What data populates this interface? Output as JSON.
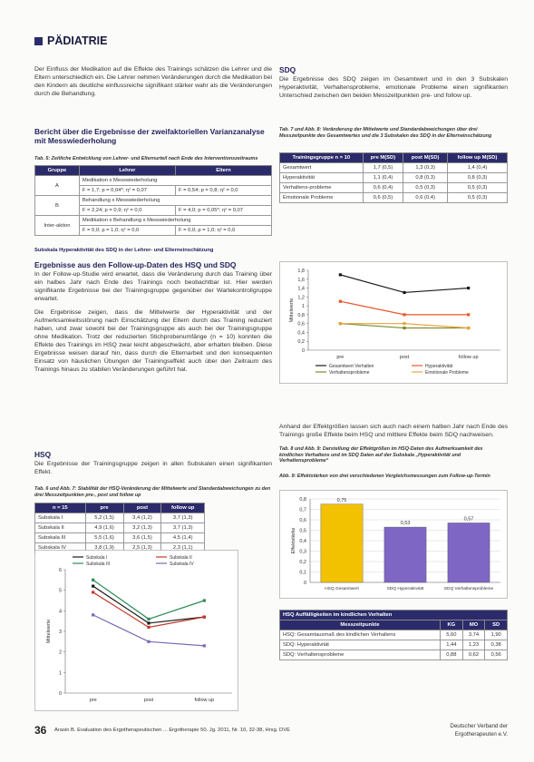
{
  "header": {
    "section": "PÄDIATRIE"
  },
  "left": {
    "intro": "Der Einfluss der Medikation auf die Effekte des Trainings schätzen die Lehrer und die Eltern unterschiedlich ein. Die Lehrer nehmen Veränderungen durch die Medikation bei den Kindern als deutliche einflussreiche signifikant stärker wahr als die Veränderungen durch die Behandlung.",
    "heading1": "Bericht über die Ergebnisse der zweifaktoriellen Varianzanalyse mit Messwiederholung",
    "tab5_caption": "Tab. 5: Zeitliche Entwicklung von Lehrer- und Elternurteil nach Ende des Interventionszeitraums",
    "tab5": {
      "header": [
        "Gruppe",
        "Lehrer",
        "Eltern"
      ],
      "rows": [
        {
          "group": "A",
          "effect": "Medikation x Messwiederholung",
          "teacher": "F = 1,7; p = 0,04*; η² = 0,07",
          "parent": "F = 0,54; p = 0,8; η² = 0,0"
        },
        {
          "group": "B",
          "effect": "Behandlung x Messwiederholung",
          "teacher": "F = 2,24; p = 0,9; η² = 0,0",
          "parent": "F = 4,0; p = 0,05*; η² = 0,07"
        },
        {
          "group": "Inter-aktion",
          "effect": "Medikation x Behandlung x Messwiederholung",
          "teacher": "F = 0,0; p = 1,0; η² = 0,0",
          "parent": "F = 0,0; p = 1,0; η² = 0,0"
        }
      ]
    },
    "tab5_note": "Subskala Hyperaktivität des SDQ in der Lehrer- und Elterneinschätzung",
    "heading2": "Ergebnisse aus den Follow-up-Daten des HSQ und SDQ",
    "p2": "In der Follow-up-Studie wird erwartet, dass die Veränderung durch das Training über ein halbes Jahr nach Ende des Trainings noch beobachtbar ist. Hier werden signifikante Ergebnisse bei der Trainingsgruppe gegenüber der Wartekontrollgruppe erwartet.",
    "p3": "Die Ergebnisse zeigen, dass die Mittelwerte der Hyperaktivität und der Aufmerksamkeitsstörung nach Einschätzung der Eltern durch das Training reduziert haben, und zwar sowohl bei der Trainingsgruppe als auch bei der Trainingsgruppe ohne Medikation. Trotz der reduzierten Stichprobenumfänge (n = 10) konnten die Effekte des Trainings im HSQ zwar leicht abgeschwächt, aber erhalten bleiben. Diese Ergebnisse weisen darauf hin, dass durch die Elternarbeit und den konsequenten Einsatz von häuslichen Übungen der Trainingseffekt auch über den Zeitraum des Trainings hinaus zu stabilen Veränderungen geführt hat.",
    "heading3": "HSQ",
    "p4": "Die Ergebnisse der Trainingsgruppe zeigen in allen Subskalen einen signifikanten Effekt.",
    "tab6_caption": "Tab. 6 und Abb. 7: Stabilität der HSQ-Veränderung der Mittelwerte und Standardabweichungen zu den drei Messzeitpunkten pre-, post und follow up",
    "tab6": {
      "header": [
        "n = 15",
        "pre",
        "post",
        "follow up"
      ],
      "rows": [
        [
          "Subskala I",
          "5,2 (1,5)",
          "3,4 (1,2)",
          "3,7 (1,3)"
        ],
        [
          "Subskala II",
          "4,9 (1,6)",
          "3,2 (1,3)",
          "3,7 (1,3)"
        ],
        [
          "Subskala III",
          "5,5 (1,6)",
          "3,6 (1,5)",
          "4,5 (1,4)"
        ],
        [
          "Subskala IV",
          "3,8 (1,9)",
          "2,5 (1,3)",
          "2,3 (1,1)"
        ]
      ]
    }
  },
  "right": {
    "heading1": "SDQ",
    "p1": "Die Ergebnisse des SDQ zeigen im Gesamtwert und in den 3 Subskalen Hyperaktivität, Verhaltensprobleme, emotionale Probleme einen signifikanten Unterschied zwischen den beiden Messzeitpunkten pre- und follow up.",
    "tab7_caption": "Tab. 7 und Abb. 8: Veränderung der Mittelwerte und Standardabweichungen über drei Messzeitpunkte des Gesamtwertes und die 3 Subskalen des SDQ in der Elterneinschätzung",
    "tab7": {
      "header": [
        "Trainingsgruppe n = 10",
        "pre M(SD)",
        "post M(SD)",
        "follow up M(SD)"
      ],
      "rows": [
        [
          "Gesamtwert",
          "1,7 (0,5)",
          "1,3 (0,3)",
          "1,4 (0,4)"
        ],
        [
          "Hyperaktivität",
          "1,1 (0,4)",
          "0,8 (0,3)",
          "0,8 (0,3)"
        ],
        [
          "Verhaltens-probleme",
          "0,6 (0,4)",
          "0,5 (0,3)",
          "0,5 (0,3)"
        ],
        [
          "Emotionale Probleme",
          "0,6 (0,5)",
          "0,6 (0,4)",
          "0,5 (0,3)"
        ]
      ]
    },
    "p2": "Anhand der Effektgrößen lassen sich auch nach einem halben Jahr nach Ende des Trainings große Effekte beim HSQ und mittlere Effekte beim SDQ nachweisen.",
    "tab8_caption": "Tab. 8 und Abb. 9: Darstellung der Effektgrößen im HSQ-Daten des Aufmerksamkeit des kindlichen Verhaltens und im SDQ Daten auf der Subskala „Hyperaktivität und Verhaltensprobleme“",
    "abb9_caption": "Abb. 9: Effektstärken von drei verschiedenen Vergleichsmessungen zum Follow-up-Termin",
    "tab8": {
      "title": "HSQ Auffälligkeiten im kindlichen Verhalten",
      "header": [
        "Messzeitpunkte",
        "KG",
        "MO",
        "SD"
      ],
      "rows": [
        [
          "HSQ: Gesamtausmaß des kindlichen Verhaltens",
          "5,60",
          "3,74",
          "1,90"
        ],
        [
          "SDQ: Hyperaktivität",
          "1,44",
          "1,23",
          "0,38"
        ],
        [
          "SDQ: Verhaltensprobleme",
          "0,88",
          "0,62",
          "0,56"
        ]
      ]
    }
  },
  "chart_data": [
    {
      "type": "line",
      "ylabel": "Mittelwerte",
      "categories": [
        "pre",
        "post",
        "follow up"
      ],
      "ylim": [
        0,
        6
      ],
      "yticks": [
        0,
        1,
        2,
        3,
        4,
        5,
        6
      ],
      "legend": "top",
      "series": [
        {
          "name": "Subskala I",
          "color": "#1a1a1a",
          "values": [
            5.2,
            3.4,
            3.7
          ]
        },
        {
          "name": "Subskala II",
          "color": "#c0392b",
          "values": [
            4.9,
            3.2,
            3.7
          ]
        },
        {
          "name": "Subskala III",
          "color": "#2e8b57",
          "values": [
            5.5,
            3.6,
            4.5
          ]
        },
        {
          "name": "Subskala IV",
          "color": "#7b68b5",
          "values": [
            3.8,
            2.5,
            2.3
          ]
        }
      ]
    },
    {
      "type": "line",
      "ylabel": "Mittelwerte",
      "categories": [
        "pre",
        "post",
        "follow up"
      ],
      "ylim": [
        0,
        1.8
      ],
      "yticks": [
        0,
        {
          "value": 0.2,
          "label": "0,2"
        },
        {
          "value": 0.4,
          "label": "0,4"
        },
        {
          "value": 0.6,
          "label": "0,6"
        },
        {
          "value": 0.8,
          "label": "0,8"
        },
        1,
        {
          "value": 1.2,
          "label": "1,2"
        },
        {
          "value": 1.4,
          "label": "1,4"
        },
        {
          "value": 1.6,
          "label": "1,6"
        },
        {
          "value": 1.8,
          "label": "1,8"
        }
      ],
      "legend": "bottom",
      "series": [
        {
          "name": "Gesamtwert Verhalten",
          "color": "#1a1a1a",
          "values": [
            1.7,
            1.3,
            1.4
          ]
        },
        {
          "name": "Hyperaktivität",
          "color": "#e8552a",
          "values": [
            1.1,
            0.8,
            0.8
          ]
        },
        {
          "name": "Verhaltensprobleme",
          "color": "#7a8a2a",
          "values": [
            0.6,
            0.5,
            0.5
          ]
        },
        {
          "name": "Emotionale Probleme",
          "color": "#e8a23a",
          "values": [
            0.6,
            0.6,
            0.5
          ]
        }
      ]
    },
    {
      "type": "bar",
      "ylabel": "Effektstärke",
      "categories": [
        "HSQ Gesamtwert",
        "SDQ Hyperaktivität",
        "SDQ Verhaltensprobleme"
      ],
      "values": [
        0.75,
        0.53,
        0.57
      ],
      "value_labels": [
        "0,75",
        "0,53",
        "0,57"
      ],
      "colors": [
        "#f2c200",
        "#7d66c4",
        "#7d66c4"
      ],
      "ylim": [
        0,
        0.8
      ],
      "yticks": [
        0,
        {
          "value": 0.1,
          "label": "0,1"
        },
        {
          "value": 0.2,
          "label": "0,2"
        },
        {
          "value": 0.3,
          "label": "0,3"
        },
        {
          "value": 0.4,
          "label": "0,4"
        },
        {
          "value": 0.5,
          "label": "0,5"
        },
        {
          "value": 0.6,
          "label": "0,6"
        },
        {
          "value": 0.7,
          "label": "0,7"
        },
        {
          "value": 0.8,
          "label": "0,8"
        }
      ],
      "grid": true
    }
  ],
  "footer": {
    "page": "36",
    "citation": "Arasin B. Evaluation des Ergotherapeutischen ... Ergotherapie 50. Jg. 2011, Nr. 10, 32-38, Hrsg. DVE",
    "publisher": [
      "Deutscher Verband der",
      "Ergotherapeuten e.V."
    ]
  }
}
